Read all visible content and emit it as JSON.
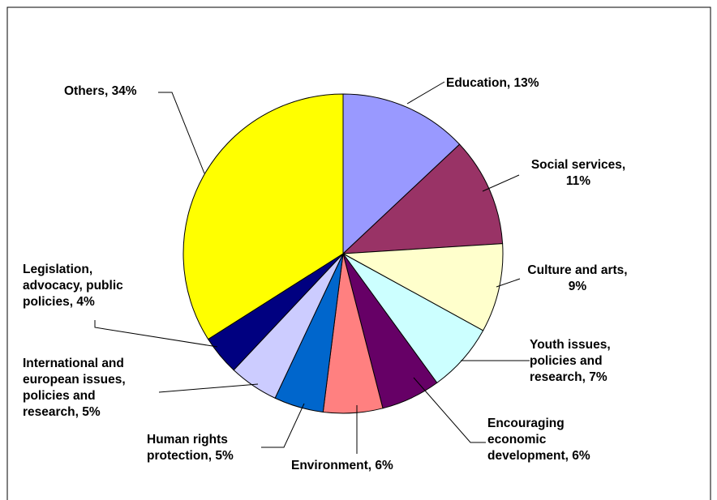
{
  "chart_data": {
    "type": "pie",
    "title": "",
    "legend": "none",
    "start_angle_deg": 0,
    "direction": "clockwise",
    "slices": [
      {
        "label": "Education",
        "value": 13,
        "display": "13%",
        "color": "#9999FF",
        "label_lines": [
          "Education, 13%"
        ]
      },
      {
        "label": "Social services",
        "value": 11,
        "display": "11%",
        "color": "#993366",
        "label_lines": [
          "Social services,",
          "11%"
        ]
      },
      {
        "label": "Culture and arts",
        "value": 9,
        "display": "9%",
        "color": "#FFFFCC",
        "label_lines": [
          "Culture and arts,",
          "9%"
        ]
      },
      {
        "label": "Youth issues, policies and research",
        "value": 7,
        "display": "7%",
        "color": "#CCFFFF",
        "label_lines": [
          "Youth issues,",
          "policies and",
          "research, 7%"
        ]
      },
      {
        "label": "Encouraging economic development",
        "value": 6,
        "display": "6%",
        "color": "#660066",
        "label_lines": [
          "Encouraging",
          "economic",
          "development, 6%"
        ]
      },
      {
        "label": "Environment",
        "value": 6,
        "display": "6%",
        "color": "#FF8080",
        "label_lines": [
          "Environment, 6%"
        ]
      },
      {
        "label": "Human rights protection",
        "value": 5,
        "display": "5%",
        "color": "#0066CC",
        "label_lines": [
          "Human rights",
          "protection, 5%"
        ]
      },
      {
        "label": "International and european issues, policies and research",
        "value": 5,
        "display": "5%",
        "color": "#CCCCFF",
        "label_lines": [
          "International and",
          "european issues,",
          "policies and",
          "research, 5%"
        ]
      },
      {
        "label": "Legislation, advocacy, public policies",
        "value": 4,
        "display": "4%",
        "color": "#000080",
        "label_lines": [
          "Legislation,",
          "advocacy, public",
          "policies, 4%"
        ]
      },
      {
        "label": "Others",
        "value": 34,
        "display": "34%",
        "color": "#FFFF00",
        "label_lines": [
          "Others, 34%"
        ]
      }
    ]
  }
}
